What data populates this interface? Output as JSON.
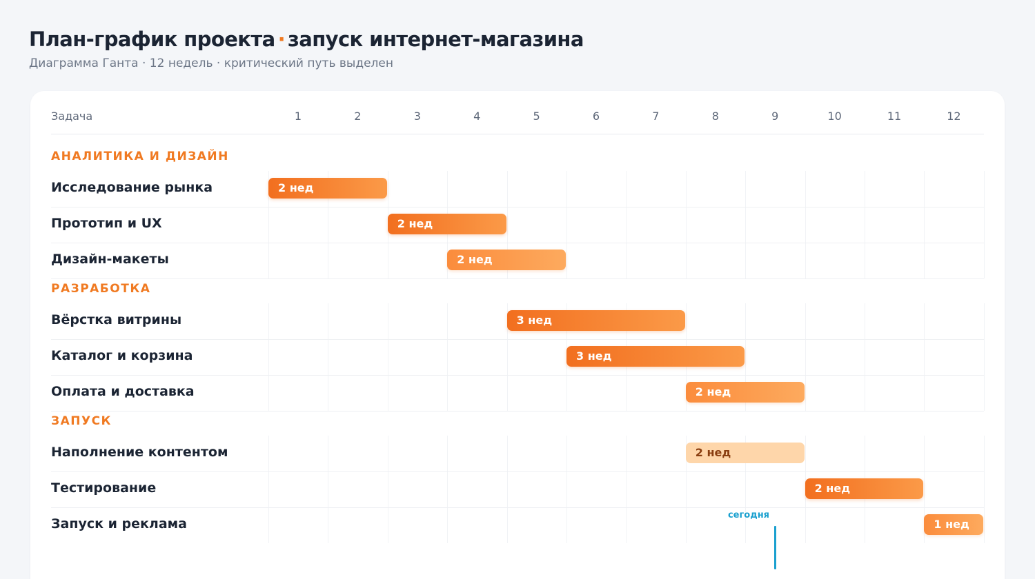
{
  "title": {
    "main": "План-график проекта",
    "separator": "·",
    "sub": "запуск интернет-магазина"
  },
  "subtitle": "Диаграмма Ганта · 12 недель · критический путь выделен",
  "header": {
    "task_label": "Задача"
  },
  "colors": {
    "accent": "#f07a22",
    "critical": "#f26f1f",
    "noncritical": "#fdaa5e",
    "light": "#fed6aa",
    "today": "#1aa0cf"
  },
  "chart_data": {
    "type": "gantt",
    "weeks": [
      "1",
      "2",
      "3",
      "4",
      "5",
      "6",
      "7",
      "8",
      "9",
      "10",
      "11",
      "12"
    ],
    "phases": [
      {
        "name": "АНАЛИТИКА И ДИЗАЙН",
        "tasks": [
          {
            "name": "Исследование рынка",
            "start": 1,
            "duration": 2,
            "label": "2 нед",
            "style": "crit"
          },
          {
            "name": "Прототип и UX",
            "start": 3,
            "duration": 2,
            "label": "2 нед",
            "style": "crit"
          },
          {
            "name": "Дизайн-макеты",
            "start": 4,
            "duration": 2,
            "label": "2 нед",
            "style": "norm"
          }
        ]
      },
      {
        "name": "РАЗРАБОТКА",
        "tasks": [
          {
            "name": "Вёрстка витрины",
            "start": 5,
            "duration": 3,
            "label": "3 нед",
            "style": "crit"
          },
          {
            "name": "Каталог и корзина",
            "start": 6,
            "duration": 3,
            "label": "3 нед",
            "style": "crit"
          },
          {
            "name": "Оплата и доставка",
            "start": 8,
            "duration": 2,
            "label": "2 нед",
            "style": "norm"
          }
        ]
      },
      {
        "name": "ЗАПУСК",
        "tasks": [
          {
            "name": "Наполнение контентом",
            "start": 8,
            "duration": 2,
            "label": "2 нед",
            "style": "light"
          },
          {
            "name": "Тестирование",
            "start": 10,
            "duration": 2,
            "label": "2 нед",
            "style": "crit"
          },
          {
            "name": "Запуск и реклама",
            "start": 12,
            "duration": 1,
            "label": "1 нед",
            "style": "norm"
          }
        ]
      }
    ],
    "today": {
      "label": "сегодня",
      "week": 8.5
    }
  }
}
